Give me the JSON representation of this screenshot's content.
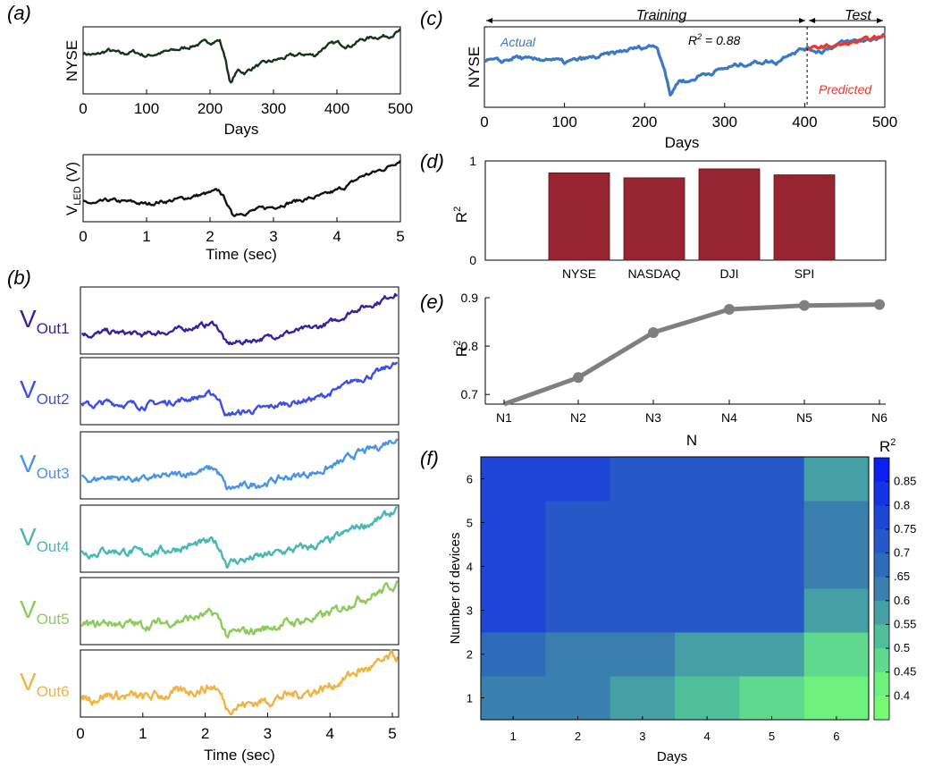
{
  "figure": {
    "panel_labels": {
      "a": "(a)",
      "b": "(b)",
      "c": "(c)",
      "d": "(d)",
      "e": "(e)",
      "f": "(f)"
    }
  },
  "chart_data": [
    {
      "id": "a_top",
      "type": "line",
      "title": "",
      "xlabel": "Days",
      "ylabel": "NYSE",
      "xlim": [
        0,
        500
      ],
      "xticks": [
        0,
        100,
        200,
        300,
        400,
        500
      ],
      "ylim": [
        0,
        1
      ],
      "series": [
        {
          "name": "NYSE",
          "color": "#16341a",
          "x": [
            0,
            20,
            40,
            60,
            80,
            100,
            120,
            140,
            160,
            180,
            200,
            215,
            225,
            232,
            238,
            245,
            255,
            270,
            290,
            310,
            330,
            350,
            365,
            380,
            400,
            420,
            440,
            460,
            480,
            500
          ],
          "y": [
            0.62,
            0.58,
            0.66,
            0.6,
            0.64,
            0.57,
            0.62,
            0.65,
            0.7,
            0.76,
            0.8,
            0.83,
            0.5,
            0.1,
            0.24,
            0.34,
            0.3,
            0.4,
            0.46,
            0.52,
            0.57,
            0.6,
            0.58,
            0.72,
            0.78,
            0.74,
            0.84,
            0.88,
            0.9,
            0.97
          ]
        }
      ]
    },
    {
      "id": "a_bottom",
      "type": "line",
      "title": "",
      "xlabel": "Time (sec)",
      "ylabel_main": "V",
      "ylabel_sub": "LED",
      "ylabel_unit": " (V)",
      "xlim": [
        0,
        5
      ],
      "xticks": [
        0,
        1,
        2,
        3,
        4,
        5
      ],
      "ylim": [
        0,
        1
      ],
      "series": [
        {
          "name": "V_LED",
          "color": "#111111",
          "x": [
            0,
            0.2,
            0.4,
            0.6,
            0.8,
            1.0,
            1.2,
            1.4,
            1.6,
            1.8,
            2.0,
            2.15,
            2.25,
            2.35,
            2.45,
            2.6,
            2.8,
            3.0,
            3.2,
            3.4,
            3.6,
            3.8,
            4.0,
            4.2,
            4.4,
            4.6,
            4.8,
            5.0
          ],
          "y": [
            0.28,
            0.24,
            0.3,
            0.28,
            0.27,
            0.24,
            0.28,
            0.3,
            0.34,
            0.38,
            0.42,
            0.45,
            0.3,
            0.06,
            0.1,
            0.12,
            0.16,
            0.2,
            0.26,
            0.3,
            0.34,
            0.38,
            0.46,
            0.56,
            0.7,
            0.76,
            0.84,
            0.97
          ]
        }
      ]
    },
    {
      "id": "b",
      "type": "line",
      "xlabel": "Time (sec)",
      "xlim": [
        0,
        5.1
      ],
      "xticks": [
        0,
        1,
        2,
        3,
        4,
        5
      ],
      "series": [
        {
          "name_main": "V",
          "name_sub": "Out1",
          "color": "#3b1fa3"
        },
        {
          "name_main": "V",
          "name_sub": "Out2",
          "color": "#3d4ee6"
        },
        {
          "name_main": "V",
          "name_sub": "Out3",
          "color": "#4a94e8"
        },
        {
          "name_main": "V",
          "name_sub": "Out4",
          "color": "#4ab7b3"
        },
        {
          "name_main": "V",
          "name_sub": "Out5",
          "color": "#8dcc5c"
        },
        {
          "name_main": "V",
          "name_sub": "Out6",
          "color": "#f0b445"
        }
      ]
    },
    {
      "id": "c",
      "type": "line",
      "xlabel": "Days",
      "ylabel": "NYSE",
      "xlim": [
        0,
        500
      ],
      "xticks": [
        0,
        100,
        200,
        300,
        400,
        500
      ],
      "ylim": [
        0,
        1
      ],
      "annotations": {
        "training": "Training",
        "test": "Test",
        "actual": "Actual",
        "predicted": "Predicted",
        "r2_main": "R",
        "r2_sup": "2",
        "r2_value": " = 0.88"
      },
      "split_x": 403,
      "series": [
        {
          "name": "Actual",
          "color": "#3a78c8",
          "x": [
            0,
            20,
            40,
            60,
            80,
            100,
            120,
            140,
            160,
            180,
            200,
            215,
            225,
            232,
            238,
            245,
            255,
            270,
            290,
            310,
            330,
            350,
            365,
            380,
            400,
            420,
            440,
            460,
            480,
            500
          ],
          "y": [
            0.62,
            0.58,
            0.66,
            0.6,
            0.64,
            0.57,
            0.62,
            0.65,
            0.7,
            0.76,
            0.8,
            0.83,
            0.5,
            0.1,
            0.24,
            0.34,
            0.3,
            0.4,
            0.46,
            0.52,
            0.57,
            0.6,
            0.58,
            0.72,
            0.78,
            0.74,
            0.84,
            0.88,
            0.9,
            0.97
          ]
        },
        {
          "name": "Predicted",
          "color": "#e8392d",
          "x": [
            403,
            420,
            440,
            460,
            480,
            500
          ],
          "y": [
            0.76,
            0.8,
            0.82,
            0.86,
            0.91,
            0.95
          ]
        }
      ]
    },
    {
      "id": "d",
      "type": "bar",
      "categories": [
        "NYSE",
        "NASDAQ",
        "DJI",
        "SPI"
      ],
      "values": [
        0.88,
        0.83,
        0.92,
        0.86
      ],
      "ylabel_main": "R",
      "ylabel_sup": "2",
      "ylim": [
        0,
        1
      ],
      "yticks": [
        0,
        1
      ],
      "bar_color": "#962531"
    },
    {
      "id": "e",
      "type": "line",
      "categories": [
        "N1",
        "N2",
        "N3",
        "N4",
        "N5",
        "N6"
      ],
      "values": [
        0.68,
        0.735,
        0.828,
        0.876,
        0.884,
        0.886
      ],
      "xlabel": "N",
      "ylabel_main": "R",
      "ylabel_sup": "2",
      "ylim": [
        0.68,
        0.9
      ],
      "yticks": [
        0.7,
        0.8,
        0.9
      ],
      "color": "#7f7f7f"
    },
    {
      "id": "f",
      "type": "heatmap",
      "xlabel": "Days",
      "ylabel": "Number of devices",
      "x": [
        1,
        2,
        3,
        4,
        5,
        6
      ],
      "y": [
        1,
        2,
        3,
        4,
        5,
        6
      ],
      "values": [
        [
          0.65,
          0.65,
          0.6,
          0.55,
          0.5,
          0.45
        ],
        [
          0.68,
          0.65,
          0.65,
          0.6,
          0.6,
          0.5
        ],
        [
          0.8,
          0.73,
          0.73,
          0.73,
          0.73,
          0.6
        ],
        [
          0.8,
          0.73,
          0.73,
          0.73,
          0.73,
          0.65
        ],
        [
          0.8,
          0.75,
          0.73,
          0.73,
          0.73,
          0.65
        ],
        [
          0.8,
          0.77,
          0.73,
          0.73,
          0.73,
          0.6
        ]
      ],
      "colorbar": {
        "title_main": "R",
        "title_sup": "2",
        "tick_labels": [
          "0.85",
          "0.8",
          "0.75",
          "0.7",
          ".65",
          "0.6",
          "0.55",
          "0.5",
          "0.45",
          "0.4"
        ],
        "colors": [
          "#0d1ff0",
          "#1533e3",
          "#1e46d6",
          "#2658c8",
          "#2e6bbb",
          "#3980af",
          "#45a0a6",
          "#4fbf9a",
          "#5fd98d",
          "#6ef07c",
          "#78fb74"
        ]
      }
    }
  ]
}
